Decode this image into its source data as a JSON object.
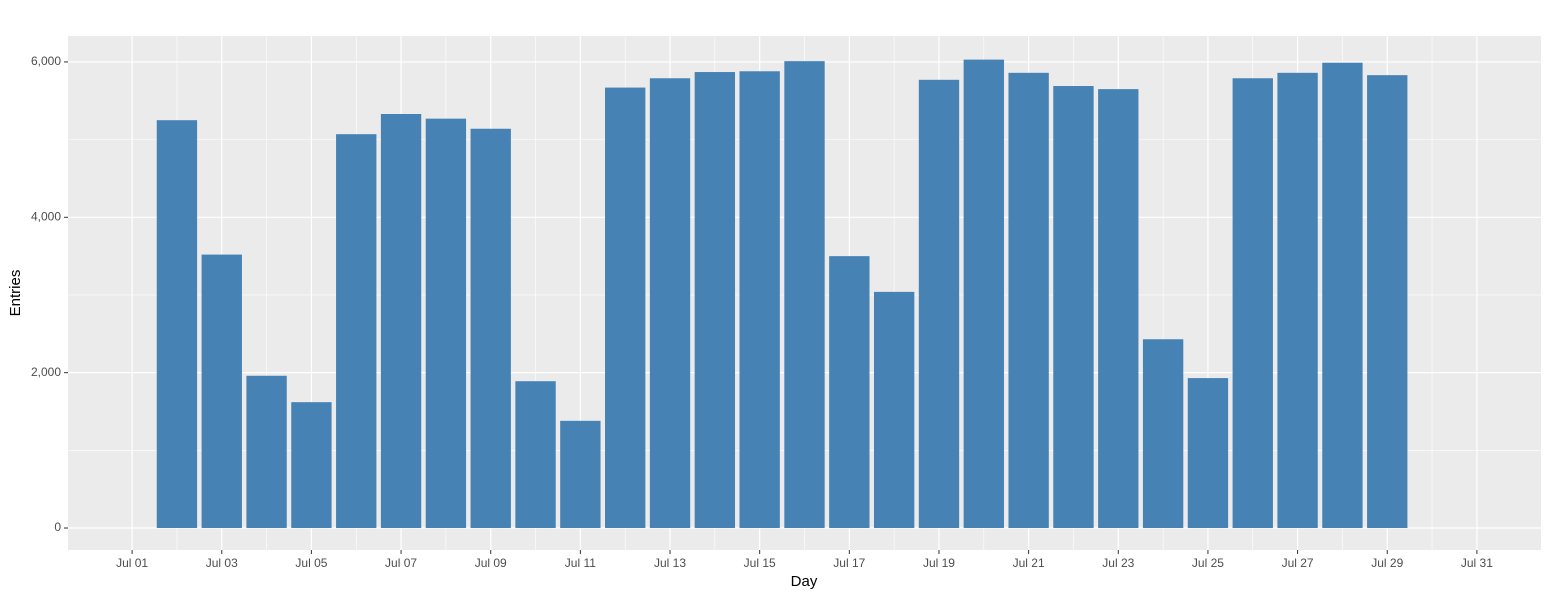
{
  "chart_data": {
    "type": "bar",
    "x_label": "Day",
    "y_label": "Entries",
    "x": [
      "Jul 02",
      "Jul 03",
      "Jul 04",
      "Jul 05",
      "Jul 06",
      "Jul 07",
      "Jul 08",
      "Jul 09",
      "Jul 10",
      "Jul 11",
      "Jul 12",
      "Jul 13",
      "Jul 14",
      "Jul 15",
      "Jul 16",
      "Jul 17",
      "Jul 18",
      "Jul 19",
      "Jul 20",
      "Jul 21",
      "Jul 22",
      "Jul 23",
      "Jul 24",
      "Jul 25",
      "Jul 26",
      "Jul 27",
      "Jul 28",
      "Jul 29"
    ],
    "values": [
      5250,
      3520,
      1960,
      1620,
      5070,
      5330,
      5270,
      5140,
      1890,
      1380,
      5670,
      5790,
      5870,
      5880,
      6010,
      3500,
      3040,
      5770,
      6030,
      5860,
      5690,
      5650,
      2430,
      1930,
      5790,
      5860,
      5990,
      5830
    ],
    "color": "#4682b4",
    "xticks": [
      "Jul 01",
      "Jul 03",
      "Jul 05",
      "Jul 07",
      "Jul 09",
      "Jul 11",
      "Jul 13",
      "Jul 15",
      "Jul 17",
      "Jul 19",
      "Jul 21",
      "Jul 23",
      "Jul 25",
      "Jul 27",
      "Jul 29",
      "Jul 31"
    ],
    "ylim": [
      -283,
      6334
    ],
    "yticks": [
      0,
      {
        "value": 2000,
        "label": "2,000"
      },
      {
        "value": 4000,
        "label": "4,000"
      },
      {
        "value": 6000,
        "label": "6,000"
      }
    ],
    "grid": true
  }
}
